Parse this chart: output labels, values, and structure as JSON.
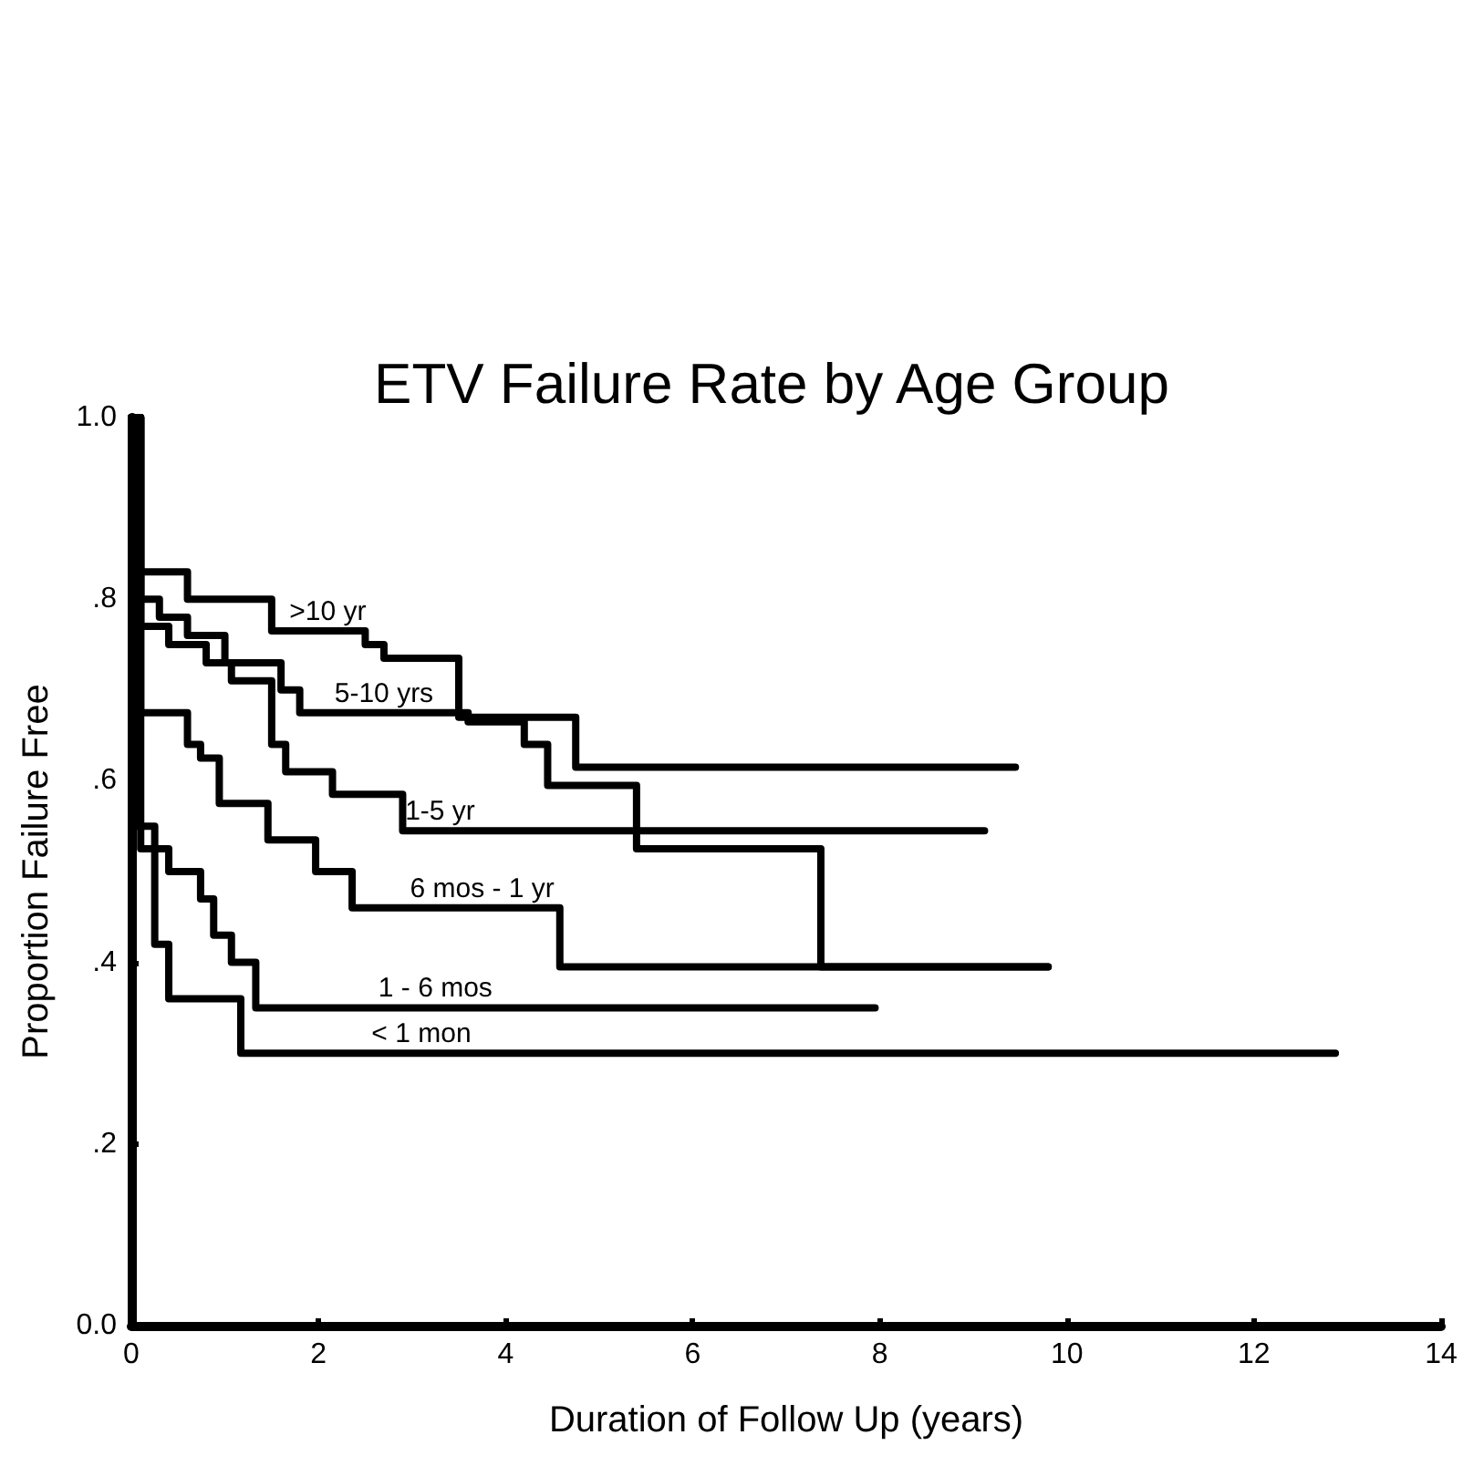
{
  "chart_data": {
    "type": "step",
    "title": "ETV Failure Rate by Age Group",
    "xlabel": "Duration of Follow Up (years)",
    "ylabel": "Proportion Failure Free",
    "xlim": [
      0,
      14
    ],
    "xticks": [
      0,
      2,
      4,
      6,
      8,
      10,
      12,
      14
    ],
    "ylim": [
      0,
      1
    ],
    "yticks": [
      {
        "value": 0,
        "label": "0.0"
      },
      {
        "value": 0.2,
        "label": ".2"
      },
      {
        "value": 0.4,
        "label": ".4"
      },
      {
        "value": 0.6,
        "label": ".6"
      },
      {
        "value": 0.8,
        "label": ".8"
      },
      {
        "value": 1,
        "label": "1.0"
      }
    ],
    "grid": false,
    "marker": "none",
    "line_style": "solid",
    "series": [
      {
        "color": "#000000",
        "x": [
          0,
          0.05,
          0.6,
          1.5,
          2.5,
          2.7,
          3.5,
          4.75,
          9.45
        ],
        "values": [
          1.0,
          0.83,
          0.8,
          0.765,
          0.75,
          0.735,
          0.67,
          0.615,
          0.615
        ]
      },
      {
        "color": "#000000",
        "x": [
          0,
          0.1,
          0.3,
          0.6,
          1.0,
          1.6,
          1.8,
          3.6,
          4.2,
          4.45,
          5.4,
          7.37,
          9.8
        ],
        "values": [
          1.0,
          0.8,
          0.78,
          0.76,
          0.73,
          0.7,
          0.675,
          0.665,
          0.64,
          0.595,
          0.525,
          0.395,
          0.395
        ]
      },
      {
        "color": "#000000",
        "x": [
          0,
          0.1,
          0.4,
          0.8,
          1.07,
          1.5,
          1.65,
          2.15,
          2.9,
          9.12
        ],
        "values": [
          1.0,
          0.77,
          0.75,
          0.73,
          0.71,
          0.64,
          0.61,
          0.585,
          0.545,
          0.545
        ]
      },
      {
        "color": "#000000",
        "x": [
          0,
          0.1,
          0.6,
          0.74,
          0.94,
          1.46,
          1.97,
          2.36,
          4.58,
          9.8
        ],
        "values": [
          1.0,
          0.675,
          0.64,
          0.625,
          0.575,
          0.535,
          0.5,
          0.46,
          0.395,
          0.395
        ]
      },
      {
        "color": "#000000",
        "x": [
          0,
          0.1,
          0.4,
          0.74,
          0.88,
          1.07,
          1.33,
          7.95
        ],
        "values": [
          1.0,
          0.525,
          0.5,
          0.47,
          0.43,
          0.4,
          0.35,
          0.35
        ]
      },
      {
        "color": "#000000",
        "x": [
          0,
          0.05,
          0.25,
          0.4,
          1.17,
          12.87
        ],
        "values": [
          1.0,
          0.55,
          0.42,
          0.36,
          0.3,
          0.3
        ]
      }
    ],
    "annotations": [
      {
        "text": ">10 yr",
        "x": 2.1,
        "y": 0.765
      },
      {
        "text": "5-10 yrs",
        "x": 2.7,
        "y": 0.675
      },
      {
        "text": "1-5 yr",
        "x": 3.3,
        "y": 0.545
      },
      {
        "text": "6 mos - 1 yr",
        "x": 3.75,
        "y": 0.46
      },
      {
        "text": "1 - 6 mos",
        "x": 3.25,
        "y": 0.35
      },
      {
        "text": "< 1 mon",
        "x": 3.1,
        "y": 0.3
      }
    ]
  }
}
